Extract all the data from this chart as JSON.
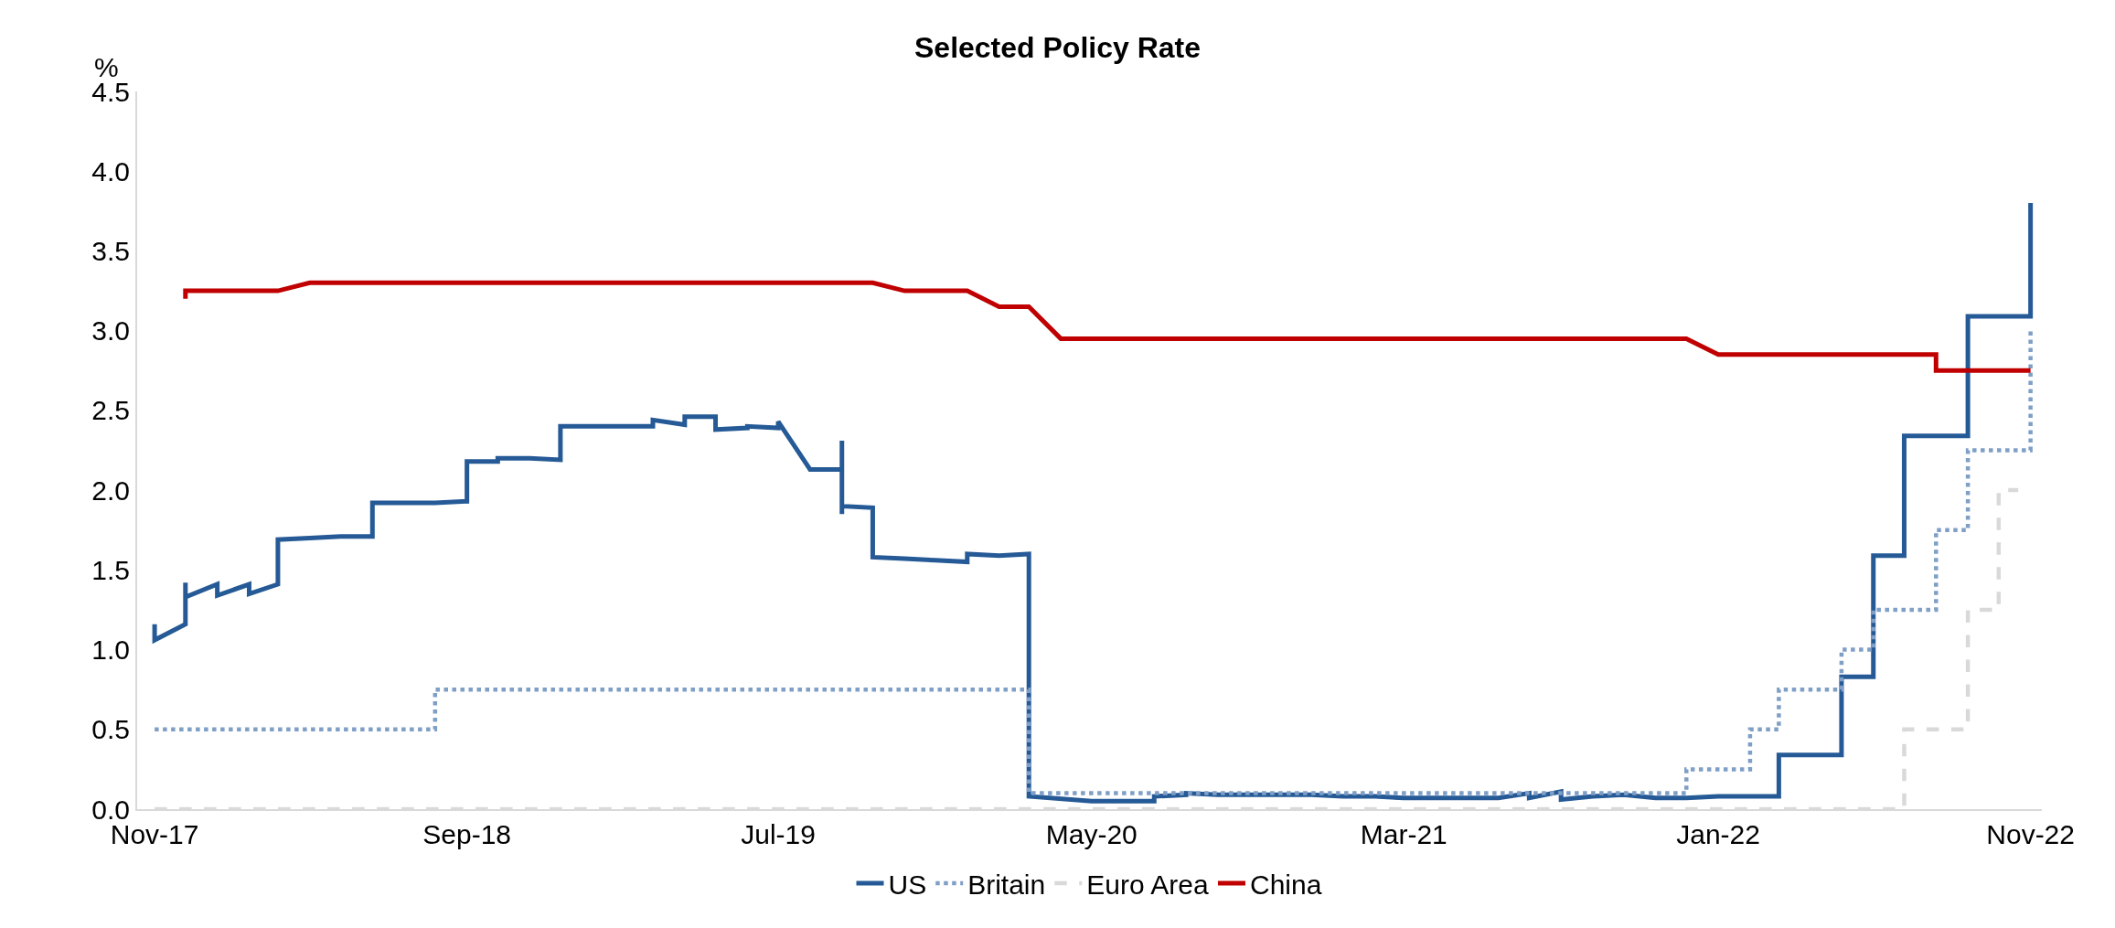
{
  "chart_data": {
    "type": "line",
    "title": "Selected Policy Rate",
    "ylabel": "%",
    "xlim": [
      "2017-10-15",
      "2022-11-12"
    ],
    "xticks": [
      {
        "value": "2017-11",
        "label": "Nov-17"
      },
      {
        "value": "2018-09",
        "label": "Sep-18"
      },
      {
        "value": "2019-07",
        "label": "Jul-19"
      },
      {
        "value": "2020-05",
        "label": "May-20"
      },
      {
        "value": "2021-03",
        "label": "Mar-21"
      },
      {
        "value": "2022-01",
        "label": "Jan-22"
      },
      {
        "value": "2022-11",
        "label": "Nov-22"
      }
    ],
    "ylim": [
      0,
      4.5
    ],
    "yticks": [
      {
        "value": 0,
        "label": "0.0"
      },
      {
        "value": 0.5,
        "label": "0.5"
      },
      {
        "value": 1,
        "label": "1.0"
      },
      {
        "value": 1.5,
        "label": "1.5"
      },
      {
        "value": 2,
        "label": "2.0"
      },
      {
        "value": 2.5,
        "label": "2.5"
      },
      {
        "value": 3,
        "label": "3.0"
      },
      {
        "value": 3.5,
        "label": "3.5"
      },
      {
        "value": 4,
        "label": "4.0"
      },
      {
        "value": 4.5,
        "label": "4.5"
      }
    ],
    "grid": false,
    "legend": "bottom",
    "marker": "none",
    "series": [
      {
        "name": "US",
        "color": "#255a96",
        "line_style": "solid",
        "x": [
          "2017-11",
          "2017-11",
          "2017-12",
          "2017-12",
          "2017-12",
          "2018-01",
          "2018-01",
          "2018-02",
          "2018-02",
          "2018-03",
          "2018-03",
          "2018-04",
          "2018-05",
          "2018-06",
          "2018-06",
          "2018-08",
          "2018-09",
          "2018-09",
          "2018-10",
          "2018-10",
          "2018-11",
          "2018-12",
          "2018-12",
          "2019-03",
          "2019-03",
          "2019-04",
          "2019-04",
          "2019-05",
          "2019-05",
          "2019-06",
          "2019-06",
          "2019-07",
          "2019-07",
          "2019-08",
          "2019-09",
          "2019-09",
          "2019-09",
          "2019-09",
          "2019-10",
          "2019-10",
          "2019-11",
          "2019-12",
          "2020-01",
          "2020-01",
          "2020-02",
          "2020-03",
          "2020-03",
          "2020-05",
          "2020-07",
          "2020-07",
          "2020-08",
          "2020-08",
          "2020-09",
          "2020-10",
          "2020-11",
          "2020-12",
          "2021-01",
          "2021-02",
          "2021-03",
          "2021-04",
          "2021-05",
          "2021-06",
          "2021-07",
          "2021-07",
          "2021-08",
          "2021-08",
          "2021-09",
          "2021-10",
          "2021-11",
          "2021-12",
          "2022-01",
          "2022-03",
          "2022-03",
          "2022-05",
          "2022-05",
          "2022-06",
          "2022-06",
          "2022-07",
          "2022-07",
          "2022-09",
          "2022-09",
          "2022-11",
          "2022-11"
        ],
        "values": [
          1.16,
          1.06,
          1.16,
          1.42,
          1.33,
          1.41,
          1.34,
          1.41,
          1.35,
          1.41,
          1.69,
          1.7,
          1.71,
          1.71,
          1.92,
          1.92,
          1.93,
          2.18,
          2.18,
          2.2,
          2.2,
          2.19,
          2.4,
          2.4,
          2.44,
          2.41,
          2.46,
          2.46,
          2.38,
          2.39,
          2.4,
          2.39,
          2.43,
          2.13,
          2.13,
          2.31,
          1.85,
          1.9,
          1.89,
          1.58,
          1.57,
          1.56,
          1.55,
          1.6,
          1.59,
          1.6,
          0.08,
          0.05,
          0.05,
          0.08,
          0.09,
          0.1,
          0.09,
          0.09,
          0.09,
          0.09,
          0.08,
          0.08,
          0.07,
          0.07,
          0.07,
          0.07,
          0.1,
          0.07,
          0.11,
          0.06,
          0.08,
          0.09,
          0.07,
          0.07,
          0.08,
          0.08,
          0.34,
          0.34,
          0.83,
          0.83,
          1.59,
          1.59,
          2.34,
          2.34,
          3.09,
          3.09,
          3.8
        ]
      },
      {
        "name": "Britain",
        "color": "#7f9fc6",
        "line_style": "dotted",
        "x": [
          "2017-11",
          "2018-08",
          "2018-08",
          "2020-03",
          "2020-03",
          "2021-12",
          "2021-12",
          "2022-02",
          "2022-02",
          "2022-03",
          "2022-03",
          "2022-05",
          "2022-05",
          "2022-06",
          "2022-06",
          "2022-08",
          "2022-08",
          "2022-09",
          "2022-09",
          "2022-11",
          "2022-11"
        ],
        "values": [
          0.5,
          0.5,
          0.75,
          0.75,
          0.1,
          0.1,
          0.25,
          0.25,
          0.5,
          0.5,
          0.75,
          0.75,
          1.0,
          1.0,
          1.25,
          1.25,
          1.75,
          1.75,
          2.25,
          2.25,
          3.0
        ]
      },
      {
        "name": "Euro Area",
        "color": "#d9d9d9",
        "line_style": "dashed",
        "x": [
          "2017-11",
          "2022-07",
          "2022-07",
          "2022-09",
          "2022-09",
          "2022-10",
          "2022-10",
          "2022-10-20"
        ],
        "values": [
          0,
          0,
          0.5,
          0.5,
          1.25,
          1.25,
          2.0,
          2.0
        ]
      },
      {
        "name": "China",
        "color": "#c00000",
        "line_style": "solid",
        "x": [
          "2017-12",
          "2017-12",
          "2018-03",
          "2018-04",
          "2019-10",
          "2019-11",
          "2020-01",
          "2020-02",
          "2020-03",
          "2020-04",
          "2021-12",
          "2022-01",
          "2022-08",
          "2022-08",
          "2022-11"
        ],
        "values": [
          3.2,
          3.25,
          3.25,
          3.3,
          3.3,
          3.25,
          3.25,
          3.15,
          3.15,
          2.95,
          2.95,
          2.85,
          2.85,
          2.75,
          2.75
        ]
      }
    ]
  }
}
